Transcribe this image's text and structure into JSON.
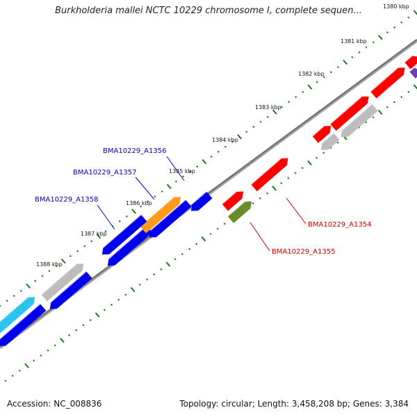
{
  "title": "Burkholderia mallei NCTC 10229 chromosome I, complete sequen...",
  "footer": {
    "accession": "Accession: NC_008836",
    "stats": "Topology: circular; Length: 3,458,208 bp; Genes: 3,384"
  },
  "colors": {
    "backbone": "#8a8a8a",
    "ticks": "#1a7a1a",
    "forward_gene": "#ff0000",
    "reverse_gene": "#0000ee",
    "gray_gene": "#bdbdbd",
    "highlight_orange": "#ff9a1a",
    "highlight_olive": "#6b8a2a",
    "cyan_gene": "#2bc4f0",
    "purple_gene": "#6a3db0",
    "forward_label": "#cc0000",
    "reverse_label": "#0000cc"
  },
  "kbp_ticks": [
    {
      "label": "1380 kbp",
      "kbp": 1380
    },
    {
      "label": "1381 kbp",
      "kbp": 1381
    },
    {
      "label": "1382 kbp",
      "kbp": 1382
    },
    {
      "label": "1383 kbp",
      "kbp": 1383
    },
    {
      "label": "1384 kbp",
      "kbp": 1384
    },
    {
      "label": "1385 kbp",
      "kbp": 1385
    },
    {
      "label": "1386 kbp",
      "kbp": 1386
    },
    {
      "label": "1387 kbp",
      "kbp": 1387
    },
    {
      "label": "1388 kbp",
      "kbp": 1388
    }
  ],
  "gene_labels": [
    {
      "text": "BMA10229_A1356",
      "strand": "reverse"
    },
    {
      "text": "BMA10229_A1357",
      "strand": "reverse"
    },
    {
      "text": "BMA10229_A1358",
      "strand": "reverse"
    },
    {
      "text": "BMA10229_A1354",
      "strand": "forward"
    },
    {
      "text": "BMA10229_A1355",
      "strand": "forward"
    }
  ]
}
